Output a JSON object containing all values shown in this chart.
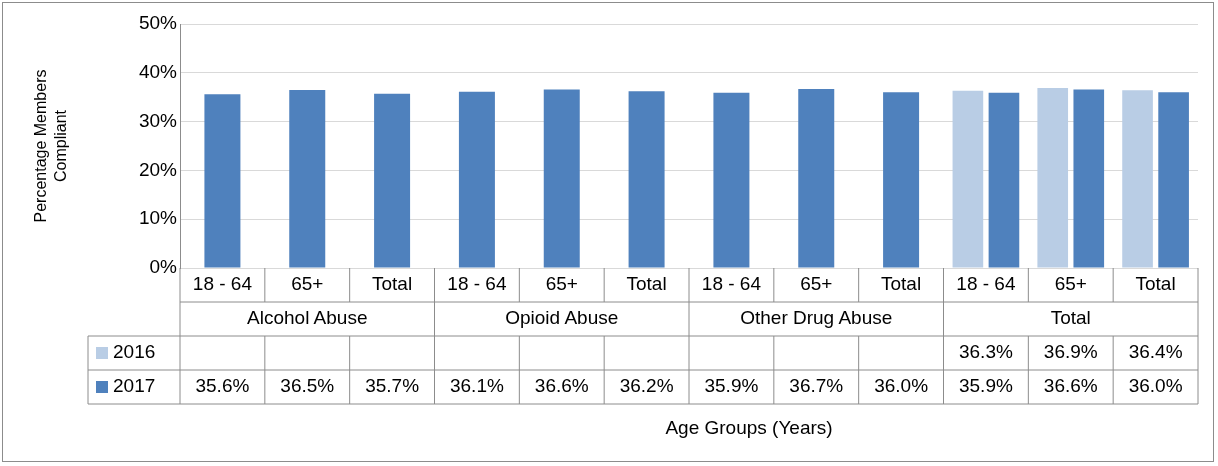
{
  "chart_data": {
    "type": "bar",
    "ylabel": "Percentage Members Compliant",
    "categories": [
      "18 - 64",
      "65+",
      "Total",
      "18 - 64",
      "65+",
      "Total",
      "18 - 64",
      "65+",
      "Total",
      "18 - 64",
      "65+",
      "Total"
    ],
    "annotations": [
      "Alcohol Abuse",
      "Opioid Abuse",
      "Other Drug Abuse",
      "Total",
      "Age Groups (Years)"
    ],
    "series": [
      {
        "name": "2016",
        "color": "#b9cde5",
        "values": [
          null,
          null,
          null,
          null,
          null,
          null,
          null,
          null,
          null,
          36.3,
          36.9,
          36.4
        ],
        "value_labels": [
          null,
          null,
          null,
          null,
          null,
          null,
          null,
          null,
          null,
          "36.3%",
          "36.9%",
          "36.4%"
        ]
      },
      {
        "name": "2017",
        "color": "#4f81bd",
        "values": [
          35.6,
          36.5,
          35.7,
          36.1,
          36.6,
          36.2,
          35.9,
          36.7,
          36.0,
          35.9,
          36.6,
          36.0
        ],
        "value_labels": [
          "35.6%",
          "36.5%",
          "35.7%",
          "36.1%",
          "36.6%",
          "36.2%",
          "35.9%",
          "36.7%",
          "36.0%",
          "35.9%",
          "36.6%",
          "36.0%"
        ]
      }
    ],
    "ylim": [
      0,
      50
    ],
    "yticks": [
      {
        "value": 0,
        "label": "0%"
      },
      {
        "value": 10,
        "label": "10%"
      },
      {
        "value": 20,
        "label": "20%"
      },
      {
        "value": 30,
        "label": "30%"
      },
      {
        "value": 40,
        "label": "40%"
      },
      {
        "value": 50,
        "label": "50%"
      }
    ],
    "grid": "y",
    "legend": "bottom"
  }
}
